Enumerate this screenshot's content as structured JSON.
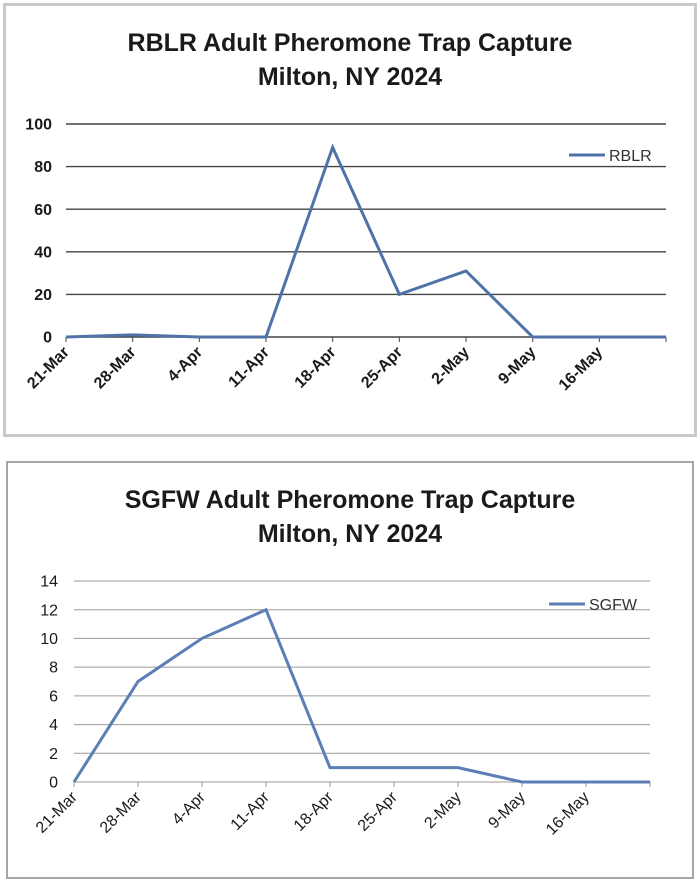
{
  "chart_data": [
    {
      "type": "line",
      "title_line1": "RBLR Adult Pheromone Trap Capture",
      "title_line2": "Milton, NY 2024",
      "xlabel": "",
      "ylabel": "",
      "categories": [
        "21-Mar",
        "28-Mar",
        "4-Apr",
        "11-Apr",
        "18-Apr",
        "25-Apr",
        "2-May",
        "9-May",
        "16-May",
        ""
      ],
      "series": [
        {
          "name": "RBLR",
          "values": [
            0,
            1,
            0,
            0,
            89,
            20,
            31,
            0,
            0,
            0
          ]
        }
      ],
      "yticks": [
        "0",
        "20",
        "40",
        "60",
        "80",
        "100"
      ],
      "ylim": [
        0,
        100
      ],
      "grid": true,
      "legend": "top-right",
      "color": "#4f73a8"
    },
    {
      "type": "line",
      "title_line1": "SGFW Adult Pheromone Trap Capture",
      "title_line2": "Milton, NY 2024",
      "xlabel": "",
      "ylabel": "",
      "categories": [
        "21-Mar",
        "28-Mar",
        "4-Apr",
        "11-Apr",
        "18-Apr",
        "25-Apr",
        "2-May",
        "9-May",
        "16-May",
        ""
      ],
      "series": [
        {
          "name": "SGFW",
          "values": [
            0,
            7,
            10,
            12,
            1,
            1,
            1,
            0,
            0,
            0
          ]
        }
      ],
      "yticks": [
        "0",
        "2",
        "4",
        "6",
        "8",
        "10",
        "12",
        "14"
      ],
      "ylim": [
        0,
        14
      ],
      "grid": true,
      "legend": "top-right",
      "color": "#5b7fb5"
    }
  ]
}
